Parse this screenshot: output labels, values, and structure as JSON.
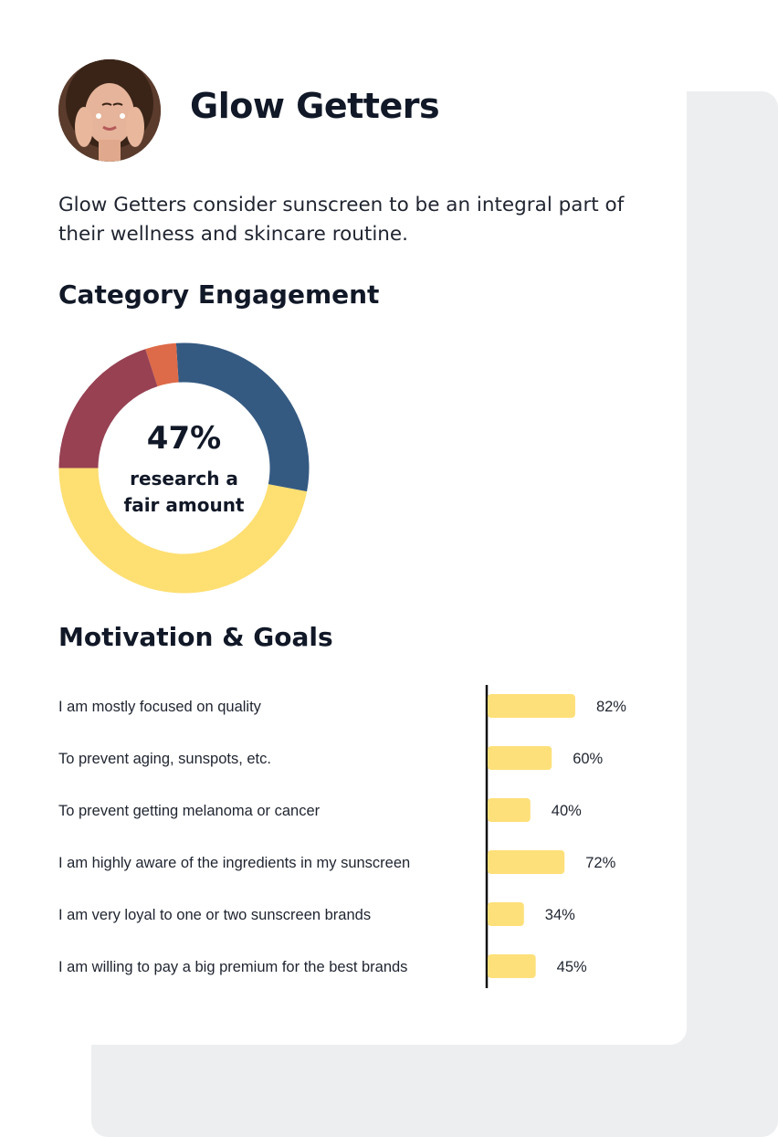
{
  "persona": {
    "name": "Glow Getters",
    "description": "Glow Getters consider sunscreen to be an integral part of their wellness and skincare routine."
  },
  "sections": {
    "engagement_title": "Category Engagement",
    "motivation_title": "Motivation & Goals"
  },
  "donut": {
    "center_value": "47%",
    "center_label": "research a fair amount"
  },
  "colors": {
    "bar": "#fee07a",
    "axis": "#111111",
    "background_card": "#eceef0"
  },
  "chart_data": [
    {
      "type": "pie",
      "variant": "donut",
      "title": "Category Engagement",
      "slices": [
        {
          "value": 47,
          "color": "#fedf72"
        },
        {
          "value": 29,
          "color": "#355a82"
        },
        {
          "value": 4,
          "color": "#dd6a48"
        },
        {
          "value": 20,
          "color": "#974153"
        }
      ]
    },
    {
      "type": "bar",
      "orientation": "horizontal",
      "title": "Motivation & Goals",
      "xlim": [
        0,
        100
      ],
      "categories": [
        "I am mostly focused on quality",
        "To prevent aging, sunspots, etc.",
        "To prevent getting melanoma or cancer",
        "I am highly aware of the ingredients in my sunscreen",
        "I am very loyal to one or two sunscreen brands",
        "I am willing to pay a big premium for the best brands"
      ],
      "values": [
        82,
        60,
        40,
        72,
        34,
        45
      ],
      "value_labels": [
        "82%",
        "60%",
        "40%",
        "72%",
        "34%",
        "45%"
      ]
    }
  ]
}
